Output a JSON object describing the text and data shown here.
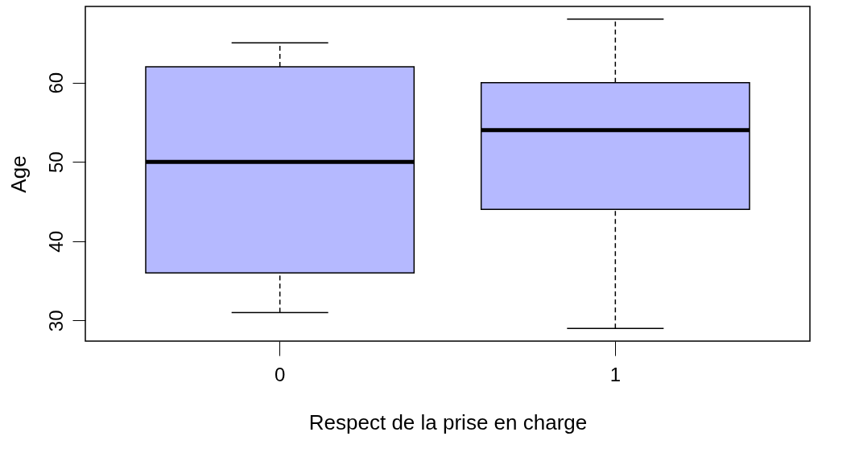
{
  "chart_data": {
    "type": "box",
    "xlabel": "Respect de la prise en charge",
    "ylabel": "Age",
    "categories": [
      "0",
      "1"
    ],
    "color": "#b5b9ff",
    "boxes": [
      {
        "low": 31,
        "q1": 36,
        "median": 50,
        "q3": 62,
        "high": 65
      },
      {
        "low": 29,
        "q1": 44,
        "median": 54,
        "q3": 60,
        "high": 68
      }
    ],
    "ylim": [
      27.4,
      69.6
    ],
    "yticks": [
      30,
      40,
      50,
      60
    ]
  }
}
